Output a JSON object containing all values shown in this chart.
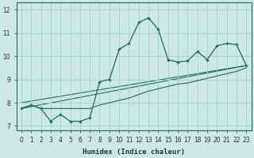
{
  "xlabel": "Humidex (Indice chaleur)",
  "xlim": [
    -0.5,
    23.5
  ],
  "ylim": [
    6.8,
    12.3
  ],
  "yticks": [
    7,
    8,
    9,
    10,
    11,
    12
  ],
  "xticks": [
    0,
    1,
    2,
    3,
    4,
    5,
    6,
    7,
    8,
    9,
    10,
    11,
    12,
    13,
    14,
    15,
    16,
    17,
    18,
    19,
    20,
    21,
    22,
    23
  ],
  "bg_color": "#cce8e8",
  "grid_color": "#aacfcf",
  "line_color": "#1a6b5a",
  "line1_x": [
    0,
    1,
    2,
    3,
    4,
    5,
    6,
    7,
    8,
    9,
    10,
    11,
    12,
    13,
    14,
    15,
    16,
    17,
    18,
    19,
    20,
    21,
    22,
    23
  ],
  "line1_y": [
    7.75,
    7.9,
    7.75,
    7.2,
    7.5,
    7.2,
    7.2,
    7.35,
    8.9,
    9.0,
    10.3,
    10.55,
    11.45,
    11.65,
    11.15,
    9.85,
    9.75,
    9.8,
    10.2,
    9.85,
    10.45,
    10.55,
    10.5,
    9.6
  ],
  "line2_x": [
    0,
    1,
    2,
    3,
    4,
    5,
    6,
    7,
    8,
    9,
    10,
    11,
    12,
    13,
    14,
    15,
    16,
    17,
    18,
    19,
    20,
    21,
    22,
    23
  ],
  "line2_y": [
    7.75,
    7.9,
    7.75,
    7.75,
    7.75,
    7.75,
    7.75,
    7.75,
    7.9,
    8.0,
    8.1,
    8.2,
    8.35,
    8.5,
    8.6,
    8.7,
    8.8,
    8.85,
    8.95,
    9.05,
    9.15,
    9.25,
    9.35,
    9.5
  ],
  "line3_x": [
    0,
    23
  ],
  "line3_y": [
    7.75,
    9.6
  ],
  "line4_x": [
    0,
    23
  ],
  "line4_y": [
    8.0,
    9.6
  ]
}
